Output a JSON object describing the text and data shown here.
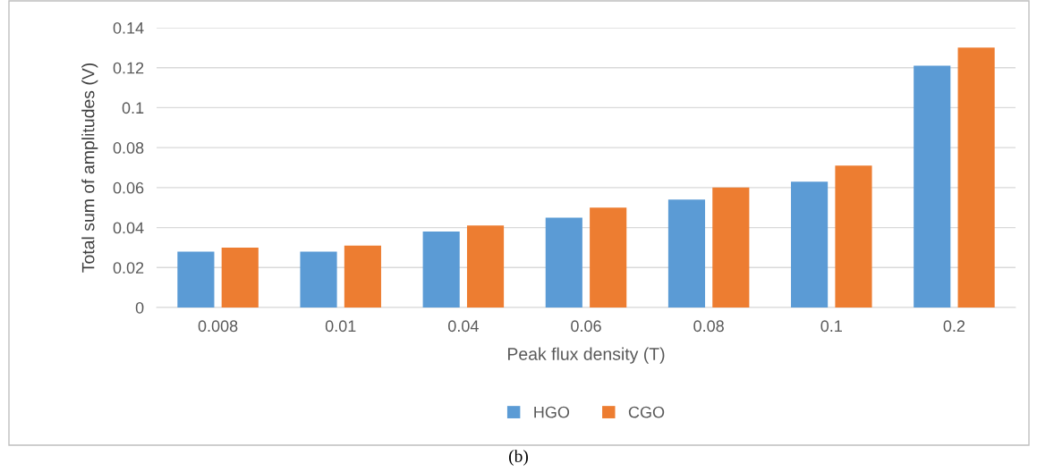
{
  "chart_data": {
    "type": "bar",
    "xlabel": "Peak flux density (T)",
    "ylabel": "Total sum of amplitudes (V)",
    "categories": [
      "0.008",
      "0.01",
      "0.04",
      "0.06",
      "0.08",
      "0.1",
      "0.2"
    ],
    "series": [
      {
        "name": "HGO",
        "color": "#5b9bd5",
        "values": [
          0.028,
          0.028,
          0.038,
          0.045,
          0.054,
          0.063,
          0.121
        ]
      },
      {
        "name": "CGO",
        "color": "#ed7d31",
        "values": [
          0.03,
          0.031,
          0.041,
          0.05,
          0.06,
          0.071,
          0.13
        ]
      }
    ],
    "ylim": [
      0,
      0.14
    ],
    "yticks": [
      0,
      0.02,
      0.04,
      0.06,
      0.08,
      0.1,
      0.12,
      0.14
    ],
    "grid": "y",
    "legend": "bottom",
    "annotations": [
      "(b)"
    ]
  }
}
